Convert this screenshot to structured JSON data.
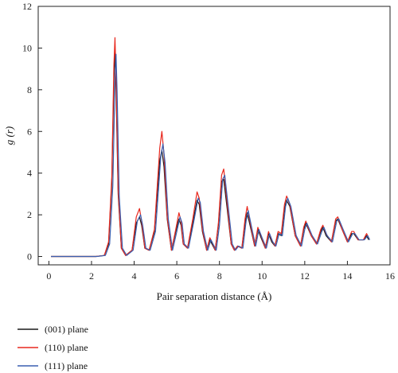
{
  "chart_data": {
    "type": "line",
    "xlabel": "Pair separation distance (Å)",
    "ylabel": "g (r)",
    "xlim": [
      -0.5,
      16
    ],
    "ylim": [
      -0.4,
      12
    ],
    "xticks": [
      0,
      2,
      4,
      6,
      8,
      10,
      12,
      14,
      16
    ],
    "yticks": [
      0,
      2,
      4,
      6,
      8,
      10,
      12
    ],
    "x_tick_labels": [
      "0",
      "2",
      "4",
      "6",
      "8",
      "10",
      "12",
      "14",
      "16"
    ],
    "y_tick_labels": [
      "0",
      "2",
      "4",
      "6",
      "8",
      "10",
      "12"
    ],
    "grid": false,
    "legend_position": "bottom-left",
    "series": [
      {
        "name": "(001) plane",
        "color": "#1a1a1a",
        "x": [
          0.1,
          2.2,
          2.6,
          2.8,
          2.95,
          3.05,
          3.1,
          3.15,
          3.25,
          3.4,
          3.6,
          3.9,
          4.1,
          4.25,
          4.35,
          4.5,
          4.7,
          4.95,
          5.2,
          5.3,
          5.4,
          5.55,
          5.75,
          5.95,
          6.1,
          6.2,
          6.3,
          6.5,
          6.75,
          6.95,
          7.05,
          7.2,
          7.4,
          7.55,
          7.65,
          7.8,
          7.95,
          8.1,
          8.2,
          8.35,
          8.55,
          8.7,
          8.85,
          9.05,
          9.2,
          9.3,
          9.5,
          9.65,
          9.8,
          9.95,
          10.15,
          10.3,
          10.45,
          10.6,
          10.75,
          10.9,
          11.05,
          11.15,
          11.3,
          11.55,
          11.8,
          11.95,
          12.05,
          12.3,
          12.55,
          12.75,
          12.85,
          13.0,
          13.25,
          13.45,
          13.55,
          13.75,
          14.0,
          14.2,
          14.3,
          14.5,
          14.75,
          14.9,
          15.0
        ],
        "values": [
          0.0,
          0.0,
          0.05,
          0.6,
          3.5,
          8.5,
          9.8,
          8.0,
          3.0,
          0.4,
          0.05,
          0.3,
          1.6,
          1.9,
          1.5,
          0.4,
          0.3,
          1.2,
          4.6,
          5.1,
          4.3,
          1.8,
          0.3,
          1.2,
          1.8,
          1.5,
          0.6,
          0.4,
          1.6,
          2.7,
          2.5,
          1.2,
          0.3,
          0.8,
          0.6,
          0.3,
          1.5,
          3.6,
          3.7,
          2.4,
          0.6,
          0.3,
          0.5,
          0.4,
          1.6,
          2.1,
          1.2,
          0.5,
          1.3,
          0.9,
          0.4,
          1.1,
          0.7,
          0.5,
          1.1,
          1.0,
          2.3,
          2.7,
          2.4,
          1.0,
          0.5,
          1.3,
          1.6,
          1.0,
          0.6,
          1.2,
          1.4,
          1.0,
          0.7,
          1.7,
          1.8,
          1.3,
          0.7,
          1.1,
          1.1,
          0.8,
          0.8,
          1.0,
          0.8
        ]
      },
      {
        "name": "(110) plane",
        "color": "#e8281e",
        "x": [
          0.1,
          2.2,
          2.6,
          2.8,
          2.95,
          3.05,
          3.1,
          3.15,
          3.25,
          3.4,
          3.6,
          3.9,
          4.1,
          4.25,
          4.35,
          4.5,
          4.7,
          4.95,
          5.2,
          5.3,
          5.4,
          5.55,
          5.75,
          5.95,
          6.1,
          6.2,
          6.3,
          6.5,
          6.75,
          6.95,
          7.05,
          7.2,
          7.4,
          7.55,
          7.65,
          7.8,
          7.95,
          8.1,
          8.2,
          8.35,
          8.55,
          8.7,
          8.85,
          9.05,
          9.2,
          9.3,
          9.5,
          9.65,
          9.8,
          9.95,
          10.15,
          10.3,
          10.45,
          10.6,
          10.75,
          10.9,
          11.05,
          11.15,
          11.3,
          11.55,
          11.8,
          11.95,
          12.05,
          12.3,
          12.55,
          12.75,
          12.85,
          13.0,
          13.25,
          13.45,
          13.55,
          13.75,
          14.0,
          14.2,
          14.3,
          14.5,
          14.75,
          14.9,
          15.0
        ],
        "values": [
          0.0,
          0.0,
          0.05,
          0.7,
          3.8,
          9.2,
          10.5,
          8.6,
          3.2,
          0.4,
          0.05,
          0.3,
          1.9,
          2.3,
          1.7,
          0.4,
          0.3,
          1.3,
          5.2,
          6.0,
          4.9,
          1.9,
          0.3,
          1.3,
          2.1,
          1.7,
          0.6,
          0.4,
          1.8,
          3.1,
          2.8,
          1.3,
          0.3,
          0.9,
          0.7,
          0.3,
          1.6,
          3.9,
          4.2,
          2.7,
          0.6,
          0.3,
          0.5,
          0.4,
          1.8,
          2.4,
          1.3,
          0.5,
          1.4,
          1.0,
          0.4,
          1.2,
          0.8,
          0.5,
          1.2,
          1.1,
          2.5,
          2.9,
          2.5,
          1.0,
          0.5,
          1.4,
          1.7,
          1.0,
          0.6,
          1.3,
          1.5,
          1.1,
          0.7,
          1.8,
          1.9,
          1.3,
          0.7,
          1.2,
          1.2,
          0.8,
          0.8,
          1.1,
          0.9
        ]
      },
      {
        "name": "(111) plane",
        "color": "#3a5fb0",
        "x": [
          0.1,
          2.25,
          2.65,
          2.85,
          3.0,
          3.1,
          3.15,
          3.2,
          3.3,
          3.45,
          3.65,
          3.95,
          4.15,
          4.3,
          4.4,
          4.55,
          4.75,
          5.0,
          5.25,
          5.35,
          5.45,
          5.6,
          5.8,
          6.0,
          6.15,
          6.25,
          6.35,
          6.55,
          6.8,
          7.0,
          7.1,
          7.25,
          7.45,
          7.6,
          7.7,
          7.85,
          8.0,
          8.15,
          8.25,
          8.4,
          8.6,
          8.75,
          8.9,
          9.1,
          9.25,
          9.35,
          9.55,
          9.7,
          9.85,
          10.0,
          10.2,
          10.35,
          10.5,
          10.65,
          10.8,
          10.95,
          11.1,
          11.2,
          11.35,
          11.6,
          11.85,
          12.0,
          12.1,
          12.35,
          12.6,
          12.8,
          12.9,
          13.05,
          13.3,
          13.5,
          13.6,
          13.8,
          14.05,
          14.25,
          14.35,
          14.55,
          14.8,
          14.95,
          15.05
        ],
        "values": [
          0.0,
          0.0,
          0.05,
          0.6,
          3.4,
          8.4,
          9.7,
          7.9,
          2.9,
          0.4,
          0.05,
          0.3,
          1.7,
          2.0,
          1.5,
          0.4,
          0.3,
          1.2,
          4.8,
          5.4,
          4.5,
          1.8,
          0.3,
          1.2,
          1.9,
          1.6,
          0.6,
          0.4,
          1.7,
          2.8,
          2.6,
          1.2,
          0.3,
          0.8,
          0.6,
          0.3,
          1.5,
          3.7,
          3.9,
          2.5,
          0.6,
          0.3,
          0.5,
          0.4,
          1.7,
          2.2,
          1.2,
          0.5,
          1.3,
          0.9,
          0.4,
          1.1,
          0.7,
          0.5,
          1.1,
          1.0,
          2.4,
          2.8,
          2.4,
          1.0,
          0.5,
          1.3,
          1.6,
          1.0,
          0.6,
          1.2,
          1.4,
          1.0,
          0.7,
          1.7,
          1.8,
          1.3,
          0.7,
          1.1,
          1.1,
          0.8,
          0.8,
          1.0,
          0.8
        ]
      }
    ]
  }
}
